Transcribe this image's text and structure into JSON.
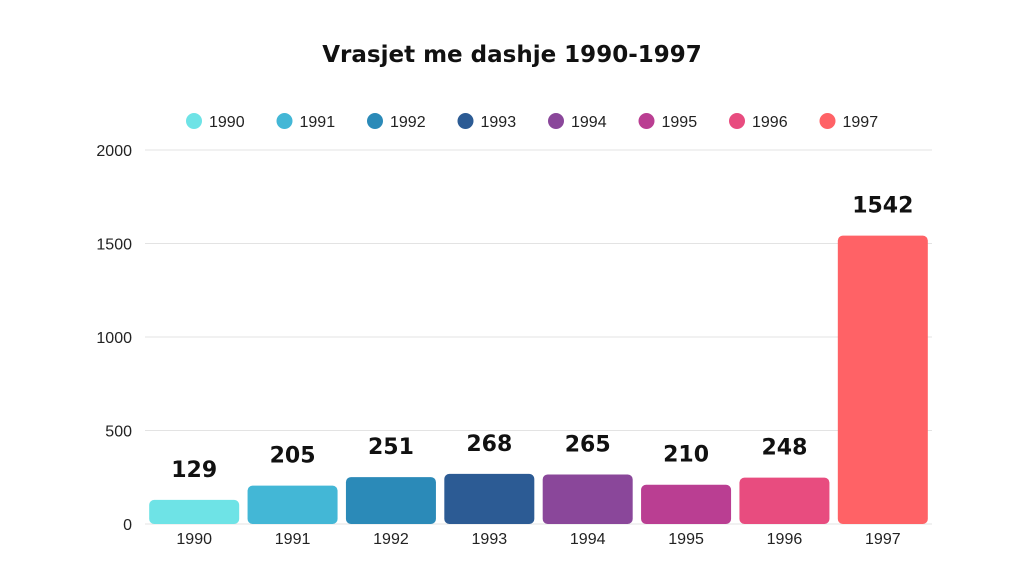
{
  "chart_data": {
    "type": "bar",
    "title": "Vrasjet me dashje 1990-1997",
    "xlabel": "",
    "ylabel": "",
    "categories": [
      "1990",
      "1991",
      "1992",
      "1993",
      "1994",
      "1995",
      "1996",
      "1997"
    ],
    "values": [
      129,
      205,
      251,
      268,
      265,
      210,
      248,
      1542
    ],
    "data_labels": [
      "129",
      "205",
      "251",
      "268",
      "265",
      "210",
      "248",
      "1542"
    ],
    "colors": [
      "#6ee3e6",
      "#43b7d6",
      "#2b8ab8",
      "#2c5b94",
      "#8a479a",
      "#ba3e92",
      "#e84c7f",
      "#ff6266"
    ],
    "legend": {
      "position": "top",
      "entries": [
        "1990",
        "1991",
        "1992",
        "1993",
        "1994",
        "1995",
        "1996",
        "1997"
      ]
    },
    "ylim": [
      0,
      2000
    ],
    "yticks": [
      "0",
      "500",
      "1000",
      "1500",
      "2000"
    ],
    "grid": true
  }
}
